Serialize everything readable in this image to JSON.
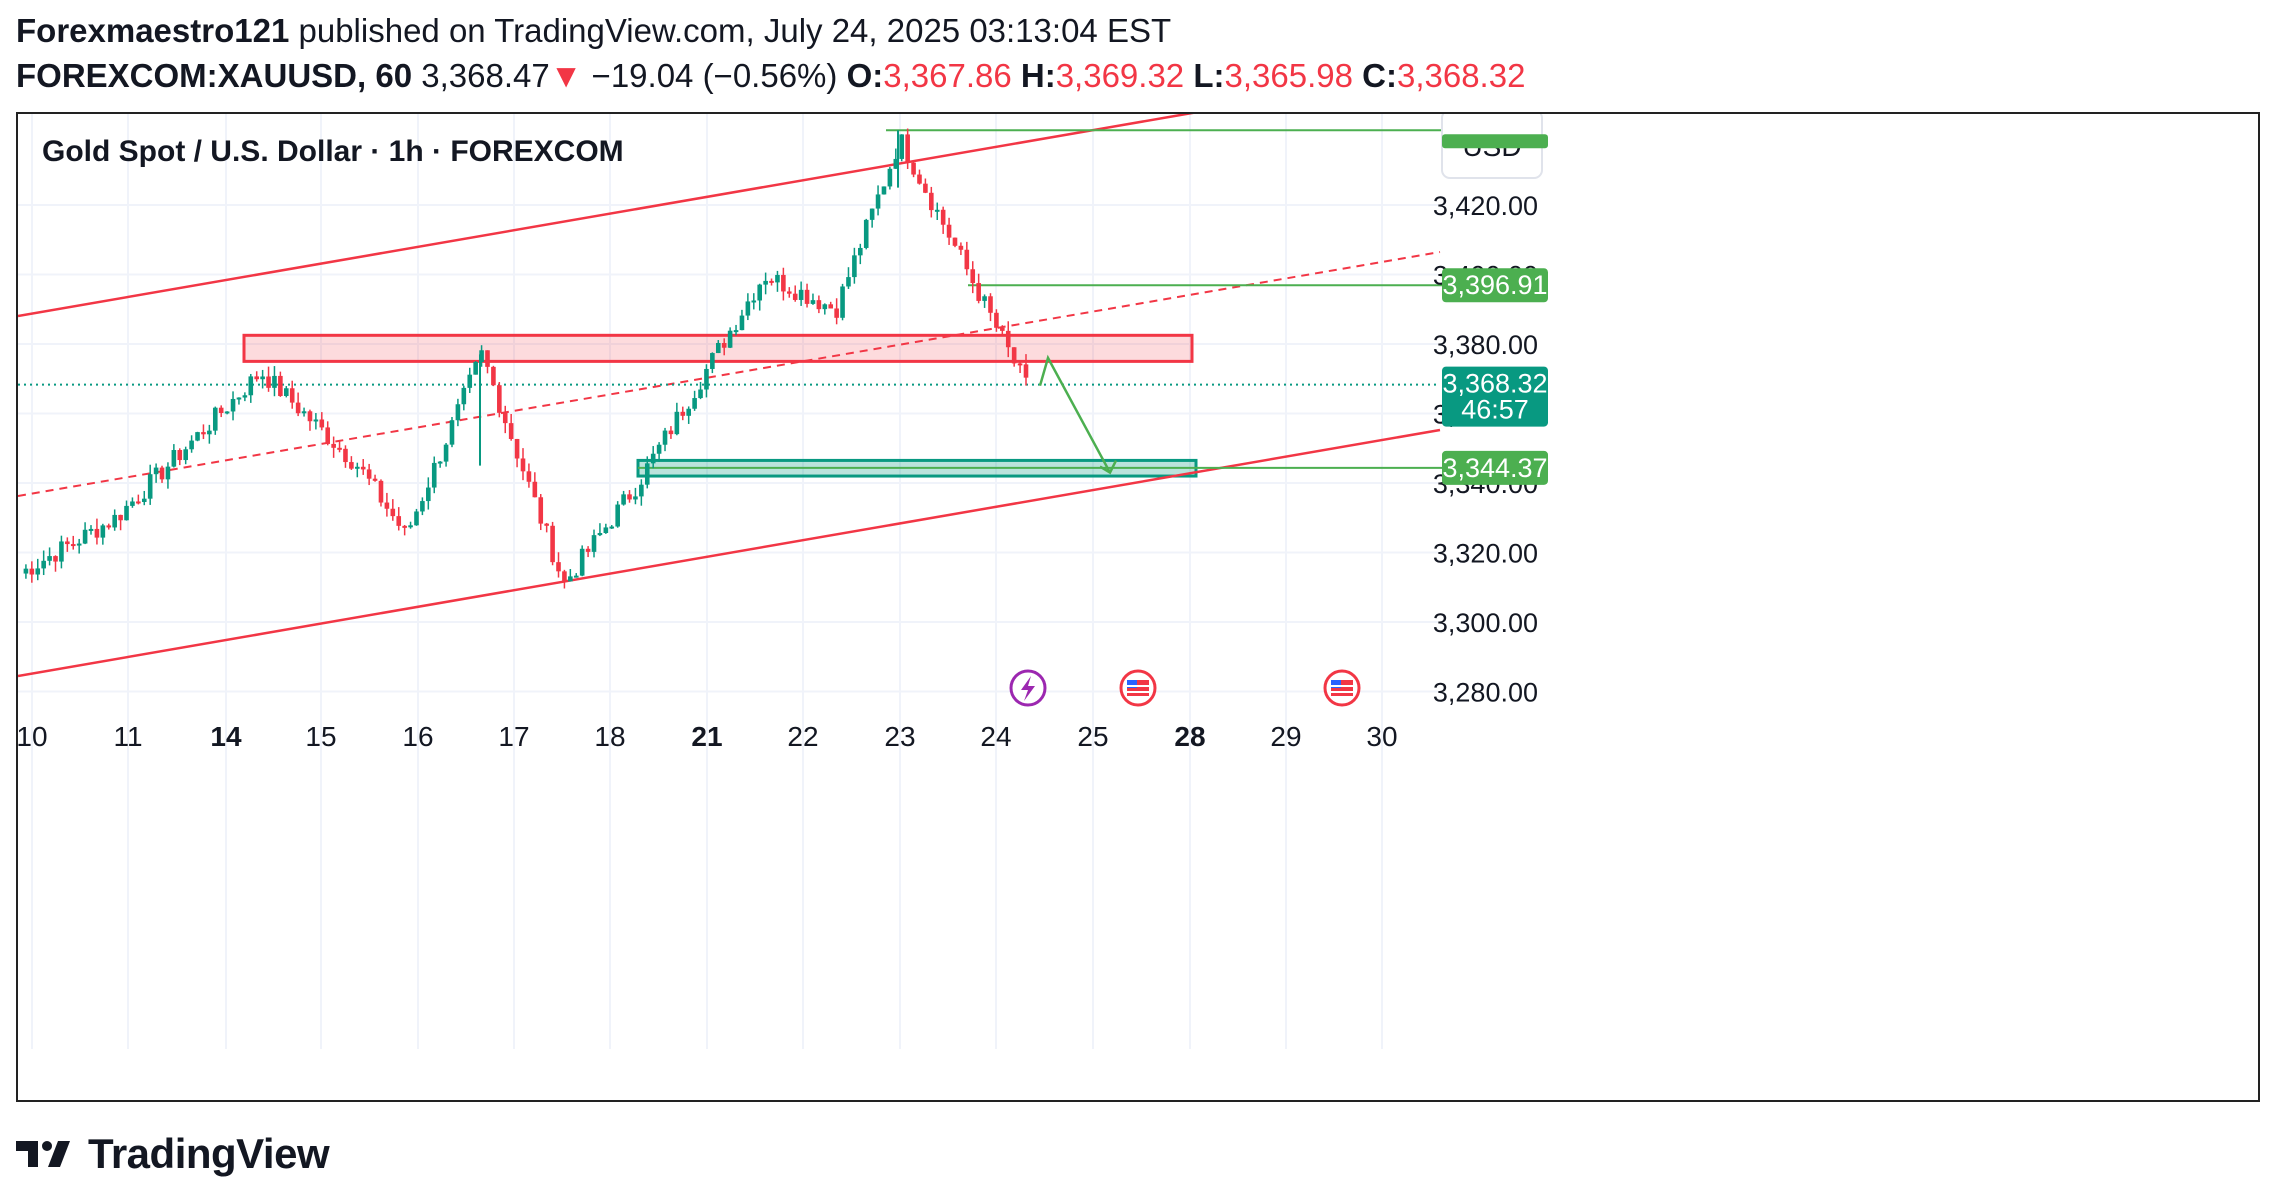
{
  "header": {
    "author": "Forexmaestro121",
    "published": " published on TradingView.com, July 24, 2025 03:13:04 EST",
    "symbol": "FOREXCOM:XAUUSD, 60",
    "last": "3,368.47",
    "down_arrow": "▼",
    "change": "−19.04 (−0.56%)",
    "o_label": "O:",
    "o": "3,367.86",
    "h_label": "H:",
    "h": "3,369.32",
    "l_label": "L:",
    "l": "3,365.98",
    "c_label": "C:",
    "c": "3,368.32"
  },
  "footer": {
    "logo": "TradingView"
  },
  "chart_data": {
    "type": "candlestick",
    "title": "Gold Spot / U.S. Dollar · 1h · FOREXCOM",
    "currency": "USD",
    "y_ticks": [
      "3,420.00",
      "3,400.00",
      "3,380.00",
      "3,360.00",
      "3,340.00",
      "3,320.00",
      "3,300.00",
      "3,280.00"
    ],
    "x_ticks": [
      {
        "label": "10",
        "bold": false
      },
      {
        "label": "11",
        "bold": false
      },
      {
        "label": "14",
        "bold": true
      },
      {
        "label": "15",
        "bold": false
      },
      {
        "label": "16",
        "bold": false
      },
      {
        "label": "17",
        "bold": false
      },
      {
        "label": "18",
        "bold": false
      },
      {
        "label": "21",
        "bold": true
      },
      {
        "label": "22",
        "bold": false
      },
      {
        "label": "23",
        "bold": false
      },
      {
        "label": "24",
        "bold": false
      },
      {
        "label": "25",
        "bold": false
      },
      {
        "label": "28",
        "bold": true
      },
      {
        "label": "29",
        "bold": false
      },
      {
        "label": "30",
        "bold": false
      }
    ],
    "ylim": [
      3269,
      3448
    ],
    "price_labels": [
      {
        "text": "3,396.91",
        "value": 3396.91,
        "color": "#4caf50"
      },
      {
        "text": "3,368.32",
        "sub": "46:57",
        "value": 3368.32,
        "color": "#089981"
      },
      {
        "text": "3,344.37",
        "value": 3344.37,
        "color": "#4caf50"
      }
    ],
    "current_price": 3368.32,
    "key_points": [
      {
        "date": "Jul 10",
        "price": 3314
      },
      {
        "date": "Jul 11",
        "price": 3330
      },
      {
        "date": "Jul 14",
        "price": 3372
      },
      {
        "date": "Jul 15",
        "price": 3345
      },
      {
        "date": "Jul 16",
        "price": 3325
      },
      {
        "date": "Jul 16 spike",
        "price": 3377
      },
      {
        "date": "Jul 17",
        "price": 3311
      },
      {
        "date": "Jul 18",
        "price": 3340
      },
      {
        "date": "Jul 21",
        "price": 3400
      },
      {
        "date": "Jul 22",
        "price": 3390
      },
      {
        "date": "Jul 23 high",
        "price": 3439
      },
      {
        "date": "Jul 24",
        "price": 3368
      }
    ],
    "zones": [
      {
        "name": "resistance",
        "top": 3382.5,
        "bottom": 3375
      },
      {
        "name": "support",
        "top": 3346.5,
        "bottom": 3342
      }
    ],
    "levels": [
      3441.5,
      3396.91,
      3344.37
    ],
    "projection": [
      3368,
      3376,
      3343
    ],
    "colors": {
      "up": "#089981",
      "down": "#f23645",
      "channel": "#f23645",
      "level": "#4caf50"
    }
  }
}
